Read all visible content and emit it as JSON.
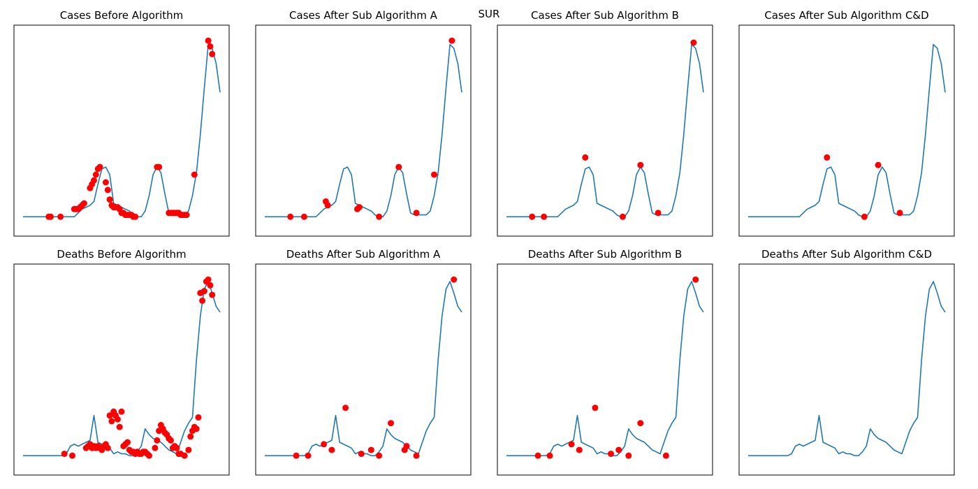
{
  "suptitle": "SUR",
  "colors": {
    "line": "#1f77b4",
    "marker": "#ff0000",
    "axes": "#000000"
  },
  "chart_data": [
    {
      "type": "line",
      "title": "Cases Before Algorithm",
      "xlim": [
        0,
        100
      ],
      "ylim": [
        0,
        100
      ],
      "xticks": [],
      "yticks": [],
      "x": [
        0,
        10,
        12,
        14,
        16,
        18,
        20,
        22,
        24,
        26,
        28,
        30,
        32,
        34,
        36,
        38,
        40,
        42,
        44,
        46,
        48,
        50,
        52,
        54,
        56,
        58,
        60,
        62,
        64,
        66,
        68,
        70,
        72,
        74,
        76,
        78,
        80,
        82,
        84,
        86,
        88,
        90,
        92,
        94,
        96,
        98,
        100
      ],
      "y": [
        5,
        5,
        5,
        5,
        5,
        5,
        5,
        5,
        5,
        5,
        7,
        9,
        10,
        11,
        13,
        22,
        30,
        31,
        27,
        12,
        11,
        10,
        9,
        8,
        6,
        5,
        5,
        8,
        16,
        27,
        31,
        28,
        17,
        7,
        6,
        6,
        6,
        6,
        8,
        16,
        28,
        48,
        72,
        95,
        93,
        85,
        70
      ],
      "markers": [
        [
          13,
          5
        ],
        [
          14,
          5
        ],
        [
          19,
          5
        ],
        [
          26,
          9
        ],
        [
          27,
          9
        ],
        [
          28,
          9
        ],
        [
          29,
          10
        ],
        [
          30,
          11
        ],
        [
          31,
          12
        ],
        [
          34,
          20
        ],
        [
          35,
          22
        ],
        [
          36,
          24
        ],
        [
          37,
          27
        ],
        [
          38,
          30
        ],
        [
          39,
          31
        ],
        [
          42,
          23
        ],
        [
          43,
          19
        ],
        [
          44,
          14
        ],
        [
          45,
          11
        ],
        [
          46,
          10
        ],
        [
          47,
          10
        ],
        [
          48,
          10
        ],
        [
          49,
          9
        ],
        [
          50,
          7
        ],
        [
          51,
          7
        ],
        [
          52,
          6
        ],
        [
          53,
          6
        ],
        [
          54,
          6
        ],
        [
          55,
          6
        ],
        [
          56,
          5
        ],
        [
          57,
          5
        ],
        [
          68,
          31
        ],
        [
          69,
          31
        ],
        [
          74,
          7
        ],
        [
          75,
          7
        ],
        [
          76,
          7
        ],
        [
          77,
          7
        ],
        [
          78,
          7
        ],
        [
          79,
          7
        ],
        [
          80,
          6
        ],
        [
          81,
          6
        ],
        [
          82,
          6
        ],
        [
          83,
          6
        ],
        [
          87,
          27
        ],
        [
          94,
          97
        ],
        [
          95,
          94
        ],
        [
          96,
          90
        ]
      ]
    },
    {
      "type": "line",
      "title": "Cases After Sub Algorithm A",
      "xlim": [
        0,
        100
      ],
      "ylim": [
        0,
        100
      ],
      "xticks": [],
      "yticks": [],
      "x": [
        0,
        10,
        12,
        14,
        16,
        18,
        20,
        22,
        24,
        26,
        28,
        30,
        32,
        34,
        36,
        38,
        40,
        42,
        44,
        46,
        48,
        50,
        52,
        54,
        56,
        58,
        60,
        62,
        64,
        66,
        68,
        70,
        72,
        74,
        76,
        78,
        80,
        82,
        84,
        86,
        88,
        90,
        92,
        94,
        96,
        98,
        100
      ],
      "y": [
        5,
        5,
        5,
        5,
        5,
        5,
        5,
        5,
        5,
        5,
        7,
        9,
        10,
        11,
        13,
        22,
        30,
        31,
        27,
        12,
        11,
        10,
        9,
        8,
        6,
        5,
        5,
        8,
        16,
        27,
        31,
        28,
        17,
        7,
        6,
        6,
        6,
        6,
        8,
        16,
        28,
        48,
        72,
        95,
        93,
        85,
        70
      ],
      "markers": [
        [
          13,
          5
        ],
        [
          20,
          5
        ],
        [
          31,
          13
        ],
        [
          32,
          11
        ],
        [
          47,
          9
        ],
        [
          48,
          10
        ],
        [
          58,
          5
        ],
        [
          68,
          31
        ],
        [
          77,
          7
        ],
        [
          86,
          27
        ],
        [
          95,
          97
        ]
      ]
    },
    {
      "type": "line",
      "title": "Cases After Sub Algorithm B",
      "xlim": [
        0,
        100
      ],
      "ylim": [
        0,
        100
      ],
      "xticks": [],
      "yticks": [],
      "x": [
        0,
        10,
        12,
        14,
        16,
        18,
        20,
        22,
        24,
        26,
        28,
        30,
        32,
        34,
        36,
        38,
        40,
        42,
        44,
        46,
        48,
        50,
        52,
        54,
        56,
        58,
        60,
        62,
        64,
        66,
        68,
        70,
        72,
        74,
        76,
        78,
        80,
        82,
        84,
        86,
        88,
        90,
        92,
        94,
        96,
        98,
        100
      ],
      "y": [
        5,
        5,
        5,
        5,
        5,
        5,
        5,
        5,
        5,
        5,
        7,
        9,
        10,
        11,
        13,
        22,
        30,
        31,
        27,
        12,
        11,
        10,
        9,
        8,
        6,
        5,
        5,
        8,
        16,
        27,
        31,
        28,
        17,
        7,
        6,
        6,
        6,
        6,
        8,
        16,
        28,
        48,
        72,
        95,
        93,
        85,
        70
      ],
      "markers": [
        [
          13,
          5
        ],
        [
          19,
          5
        ],
        [
          40,
          36
        ],
        [
          59,
          5
        ],
        [
          68,
          32
        ],
        [
          77,
          7
        ],
        [
          95,
          96
        ]
      ]
    },
    {
      "type": "line",
      "title": "Cases After Sub Algorithm C&D",
      "xlim": [
        0,
        100
      ],
      "ylim": [
        0,
        100
      ],
      "xticks": [],
      "yticks": [],
      "x": [
        0,
        10,
        12,
        14,
        16,
        18,
        20,
        22,
        24,
        26,
        28,
        30,
        32,
        34,
        36,
        38,
        40,
        42,
        44,
        46,
        48,
        50,
        52,
        54,
        56,
        58,
        60,
        62,
        64,
        66,
        68,
        70,
        72,
        74,
        76,
        78,
        80,
        82,
        84,
        86,
        88,
        90,
        92,
        94,
        96,
        98,
        100
      ],
      "y": [
        5,
        5,
        5,
        5,
        5,
        5,
        5,
        5,
        5,
        5,
        7,
        9,
        10,
        11,
        13,
        22,
        30,
        31,
        27,
        12,
        11,
        10,
        9,
        8,
        6,
        5,
        5,
        8,
        16,
        27,
        31,
        28,
        17,
        7,
        6,
        6,
        6,
        6,
        8,
        16,
        28,
        48,
        72,
        95,
        93,
        85,
        70
      ],
      "markers": [
        [
          40,
          36
        ],
        [
          59,
          5
        ],
        [
          66,
          32
        ],
        [
          77,
          7
        ]
      ]
    },
    {
      "type": "line",
      "title": "Deaths Before Algorithm",
      "xlim": [
        0,
        100
      ],
      "ylim": [
        0,
        100
      ],
      "xticks": [],
      "yticks": [],
      "x": [
        0,
        10,
        14,
        18,
        20,
        22,
        24,
        26,
        28,
        30,
        32,
        34,
        36,
        38,
        40,
        42,
        44,
        46,
        48,
        50,
        52,
        54,
        56,
        58,
        60,
        62,
        64,
        66,
        68,
        70,
        72,
        74,
        76,
        78,
        80,
        82,
        84,
        86,
        88,
        90,
        92,
        94,
        96,
        98,
        100
      ],
      "y": [
        5,
        5,
        5,
        5,
        5,
        6,
        10,
        11,
        10,
        11,
        12,
        13,
        26,
        12,
        11,
        10,
        9,
        6,
        7,
        6,
        6,
        5,
        5,
        7,
        10,
        19,
        16,
        14,
        13,
        12,
        10,
        8,
        7,
        6,
        12,
        18,
        22,
        25,
        55,
        78,
        92,
        96,
        90,
        83,
        80
      ],
      "markers": [
        [
          21,
          6
        ],
        [
          25,
          5
        ],
        [
          32,
          9
        ],
        [
          33,
          10
        ],
        [
          34,
          11
        ],
        [
          35,
          9
        ],
        [
          36,
          10
        ],
        [
          37,
          9
        ],
        [
          38,
          10
        ],
        [
          39,
          9
        ],
        [
          40,
          8
        ],
        [
          41,
          10
        ],
        [
          42,
          11
        ],
        [
          43,
          9
        ],
        [
          44,
          26
        ],
        [
          45,
          23
        ],
        [
          46,
          28
        ],
        [
          47,
          26
        ],
        [
          48,
          24
        ],
        [
          49,
          20
        ],
        [
          50,
          28
        ],
        [
          51,
          10
        ],
        [
          52,
          11
        ],
        [
          53,
          12
        ],
        [
          54,
          8
        ],
        [
          55,
          7
        ],
        [
          56,
          7
        ],
        [
          57,
          6
        ],
        [
          58,
          7
        ],
        [
          59,
          6
        ],
        [
          60,
          6
        ],
        [
          61,
          7
        ],
        [
          62,
          7
        ],
        [
          63,
          6
        ],
        [
          64,
          5
        ],
        [
          67,
          9
        ],
        [
          68,
          13
        ],
        [
          69,
          18
        ],
        [
          70,
          21
        ],
        [
          71,
          19
        ],
        [
          72,
          17
        ],
        [
          73,
          16
        ],
        [
          74,
          14
        ],
        [
          75,
          13
        ],
        [
          76,
          9
        ],
        [
          77,
          10
        ],
        [
          78,
          9
        ],
        [
          79,
          6
        ],
        [
          80,
          6
        ],
        [
          82,
          5
        ],
        [
          84,
          8
        ],
        [
          85,
          15
        ],
        [
          86,
          18
        ],
        [
          87,
          20
        ],
        [
          88,
          19
        ],
        [
          89,
          25
        ],
        [
          90,
          90
        ],
        [
          91,
          86
        ],
        [
          92,
          91
        ],
        [
          93,
          96
        ],
        [
          94,
          97
        ],
        [
          95,
          94
        ],
        [
          96,
          89
        ]
      ]
    },
    {
      "type": "line",
      "title": "Deaths After Sub Algorithm A",
      "xlim": [
        0,
        100
      ],
      "ylim": [
        0,
        100
      ],
      "xticks": [],
      "yticks": [],
      "x": [
        0,
        10,
        14,
        18,
        20,
        22,
        24,
        26,
        28,
        30,
        32,
        34,
        36,
        38,
        40,
        42,
        44,
        46,
        48,
        50,
        52,
        54,
        56,
        58,
        60,
        62,
        64,
        66,
        68,
        70,
        72,
        74,
        76,
        78,
        80,
        82,
        84,
        86,
        88,
        90,
        92,
        94,
        96,
        98,
        100
      ],
      "y": [
        5,
        5,
        5,
        5,
        5,
        6,
        10,
        11,
        10,
        11,
        12,
        13,
        26,
        12,
        11,
        10,
        9,
        6,
        7,
        6,
        6,
        5,
        5,
        7,
        10,
        19,
        16,
        14,
        13,
        12,
        10,
        8,
        7,
        6,
        12,
        18,
        22,
        25,
        55,
        78,
        92,
        96,
        90,
        83,
        80
      ],
      "markers": [
        [
          16,
          5
        ],
        [
          22,
          5
        ],
        [
          30,
          11
        ],
        [
          34,
          8
        ],
        [
          41,
          30
        ],
        [
          49,
          6
        ],
        [
          54,
          8
        ],
        [
          58,
          5
        ],
        [
          64,
          22
        ],
        [
          71,
          8
        ],
        [
          72,
          10
        ],
        [
          77,
          5
        ],
        [
          96,
          97
        ]
      ]
    },
    {
      "type": "line",
      "title": "Deaths After Sub Algorithm B",
      "xlim": [
        0,
        100
      ],
      "ylim": [
        0,
        100
      ],
      "xticks": [],
      "yticks": [],
      "x": [
        0,
        10,
        14,
        18,
        20,
        22,
        24,
        26,
        28,
        30,
        32,
        34,
        36,
        38,
        40,
        42,
        44,
        46,
        48,
        50,
        52,
        54,
        56,
        58,
        60,
        62,
        64,
        66,
        68,
        70,
        72,
        74,
        76,
        78,
        80,
        82,
        84,
        86,
        88,
        90,
        92,
        94,
        96,
        98,
        100
      ],
      "y": [
        5,
        5,
        5,
        5,
        5,
        6,
        10,
        11,
        10,
        11,
        12,
        13,
        26,
        12,
        11,
        10,
        9,
        6,
        7,
        6,
        6,
        5,
        5,
        7,
        10,
        19,
        16,
        14,
        13,
        12,
        10,
        8,
        7,
        6,
        12,
        18,
        22,
        25,
        55,
        78,
        92,
        96,
        90,
        83,
        80
      ],
      "markers": [
        [
          16,
          5
        ],
        [
          22,
          5
        ],
        [
          33,
          11
        ],
        [
          37,
          8
        ],
        [
          45,
          30
        ],
        [
          53,
          6
        ],
        [
          57,
          8
        ],
        [
          62,
          5
        ],
        [
          68,
          22
        ],
        [
          81,
          5
        ],
        [
          96,
          97
        ]
      ]
    },
    {
      "type": "line",
      "title": "Deaths After Sub Algorithm C&D",
      "xlim": [
        0,
        100
      ],
      "ylim": [
        0,
        100
      ],
      "xticks": [],
      "yticks": [],
      "x": [
        0,
        10,
        14,
        18,
        20,
        22,
        24,
        26,
        28,
        30,
        32,
        34,
        36,
        38,
        40,
        42,
        44,
        46,
        48,
        50,
        52,
        54,
        56,
        58,
        60,
        62,
        64,
        66,
        68,
        70,
        72,
        74,
        76,
        78,
        80,
        82,
        84,
        86,
        88,
        90,
        92,
        94,
        96,
        98,
        100
      ],
      "y": [
        5,
        5,
        5,
        5,
        5,
        6,
        10,
        11,
        10,
        11,
        12,
        13,
        26,
        12,
        11,
        10,
        9,
        6,
        7,
        6,
        6,
        5,
        5,
        7,
        10,
        19,
        16,
        14,
        13,
        12,
        10,
        8,
        7,
        6,
        12,
        18,
        22,
        25,
        55,
        78,
        92,
        96,
        90,
        83,
        80
      ],
      "markers": []
    }
  ]
}
